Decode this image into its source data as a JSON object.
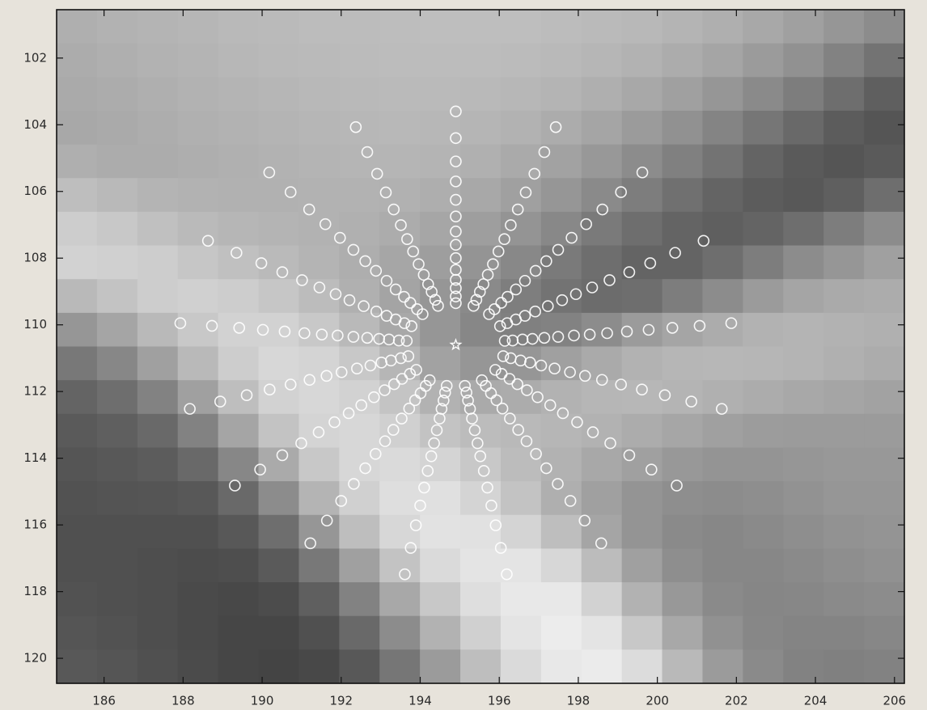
{
  "chart_data": [
    {
      "type": "heatmap",
      "xlim": [
        184.8,
        206.25
      ],
      "ylim": [
        120.75,
        100.55
      ],
      "xticks": [
        186,
        188,
        190,
        192,
        194,
        196,
        198,
        200,
        202,
        204,
        206
      ],
      "yticks": [
        102,
        104,
        106,
        108,
        110,
        112,
        114,
        116,
        118,
        120
      ],
      "z": [
        [
          175,
          178,
          180,
          182,
          185,
          186,
          188,
          188,
          189,
          190,
          190,
          190,
          188,
          186,
          184,
          180,
          175,
          168,
          160,
          150,
          140
        ],
        [
          172,
          175,
          178,
          180,
          183,
          185,
          186,
          187,
          188,
          188,
          188,
          187,
          185,
          182,
          178,
          172,
          165,
          155,
          145,
          130,
          115
        ],
        [
          170,
          172,
          175,
          178,
          180,
          182,
          184,
          185,
          186,
          186,
          185,
          183,
          180,
          175,
          168,
          160,
          150,
          138,
          125,
          110,
          95
        ],
        [
          168,
          170,
          173,
          176,
          178,
          180,
          182,
          183,
          184,
          183,
          181,
          178,
          172,
          165,
          155,
          145,
          132,
          118,
          105,
          92,
          85
        ],
        [
          175,
          172,
          172,
          174,
          176,
          178,
          180,
          181,
          181,
          180,
          176,
          170,
          162,
          152,
          140,
          128,
          115,
          100,
          90,
          85,
          90
        ],
        [
          190,
          185,
          180,
          178,
          177,
          177,
          178,
          178,
          177,
          174,
          168,
          160,
          150,
          138,
          125,
          112,
          100,
          92,
          88,
          95,
          110
        ],
        [
          205,
          200,
          192,
          186,
          182,
          180,
          178,
          176,
          172,
          166,
          158,
          148,
          136,
          122,
          110,
          100,
          95,
          100,
          110,
          125,
          140
        ],
        [
          210,
          208,
          205,
          198,
          192,
          186,
          180,
          174,
          166,
          158,
          148,
          136,
          122,
          110,
          100,
          100,
          110,
          125,
          140,
          150,
          160
        ],
        [
          185,
          195,
          205,
          208,
          205,
          198,
          188,
          176,
          164,
          150,
          138,
          126,
          115,
          108,
          110,
          125,
          140,
          155,
          165,
          170,
          172
        ],
        [
          150,
          165,
          185,
          200,
          210,
          210,
          200,
          185,
          168,
          150,
          135,
          128,
          130,
          140,
          155,
          165,
          172,
          178,
          180,
          178,
          176
        ],
        [
          120,
          135,
          160,
          185,
          205,
          215,
          212,
          200,
          182,
          162,
          150,
          150,
          160,
          170,
          178,
          182,
          183,
          182,
          180,
          176,
          172
        ],
        [
          100,
          110,
          130,
          160,
          190,
          210,
          215,
          210,
          196,
          178,
          170,
          172,
          178,
          182,
          183,
          180,
          176,
          172,
          168,
          165,
          162
        ],
        [
          90,
          95,
          105,
          130,
          165,
          195,
          212,
          215,
          208,
          195,
          188,
          185,
          182,
          178,
          172,
          166,
          160,
          156,
          155,
          155,
          155
        ],
        [
          85,
          88,
          92,
          105,
          135,
          170,
          200,
          215,
          218,
          212,
          200,
          188,
          178,
          168,
          160,
          152,
          148,
          148,
          150,
          152,
          152
        ],
        [
          82,
          84,
          85,
          88,
          105,
          140,
          180,
          208,
          222,
          224,
          212,
          195,
          175,
          160,
          148,
          142,
          140,
          142,
          146,
          150,
          150
        ],
        [
          80,
          80,
          80,
          80,
          88,
          110,
          150,
          190,
          215,
          226,
          225,
          212,
          190,
          165,
          148,
          138,
          135,
          138,
          142,
          146,
          148
        ],
        [
          80,
          80,
          78,
          76,
          78,
          90,
          120,
          160,
          195,
          218,
          228,
          228,
          215,
          188,
          160,
          142,
          135,
          135,
          138,
          142,
          145
        ],
        [
          82,
          80,
          78,
          74,
          72,
          76,
          95,
          130,
          168,
          200,
          222,
          232,
          232,
          210,
          178,
          152,
          138,
          134,
          135,
          138,
          140
        ],
        [
          85,
          82,
          78,
          74,
          70,
          70,
          80,
          105,
          140,
          178,
          208,
          228,
          236,
          228,
          200,
          168,
          145,
          135,
          132,
          132,
          135
        ],
        [
          88,
          85,
          80,
          75,
          70,
          68,
          72,
          88,
          118,
          155,
          190,
          218,
          232,
          235,
          220,
          185,
          155,
          138,
          130,
          128,
          130
        ]
      ]
    },
    {
      "type": "scatter",
      "series": [
        {
          "color": "#ffffff",
          "marker": "circle",
          "x": [
            194.9,
            194.9,
            194.9,
            194.9,
            194.9,
            194.9,
            194.9,
            194.9,
            194.9,
            194.9,
            194.9,
            194.9,
            194.9,
            194.9
          ],
          "y": [
            103.6,
            104.4,
            105.1,
            105.7,
            106.25,
            106.75,
            107.2,
            107.6,
            108.0,
            108.35,
            108.65,
            108.9,
            109.15,
            109.35
          ]
        },
        {
          "color": "#ffffff",
          "marker": "circle",
          "x": [
            197.43,
            197.14,
            196.89,
            196.67,
            196.47,
            196.29,
            196.13,
            195.98,
            195.84,
            195.71,
            195.6,
            195.51,
            195.42,
            195.35
          ],
          "y": [
            104.07,
            104.82,
            105.47,
            106.03,
            106.54,
            107.01,
            107.43,
            107.8,
            108.18,
            108.5,
            108.78,
            109.01,
            109.25,
            109.43
          ]
        },
        {
          "color": "#ffffff",
          "marker": "circle",
          "x": [
            199.62,
            199.08,
            198.61,
            198.2,
            197.83,
            197.49,
            197.19,
            196.92,
            196.65,
            196.42,
            196.21,
            196.05,
            195.88,
            195.74
          ],
          "y": [
            105.43,
            106.02,
            106.54,
            106.98,
            107.39,
            107.75,
            108.09,
            108.38,
            108.68,
            108.94,
            109.16,
            109.34,
            109.53,
            109.68
          ]
        },
        {
          "color": "#ffffff",
          "marker": "circle",
          "x": [
            201.17,
            200.45,
            199.82,
            199.29,
            198.79,
            198.35,
            197.94,
            197.59,
            197.23,
            196.91,
            196.65,
            196.42,
            196.2,
            196.02
          ],
          "y": [
            107.48,
            107.84,
            108.15,
            108.42,
            108.66,
            108.88,
            109.08,
            109.26,
            109.44,
            109.6,
            109.73,
            109.84,
            109.95,
            110.04
          ]
        },
        {
          "color": "#ffffff",
          "marker": "circle",
          "x": [
            201.87,
            201.07,
            200.38,
            199.78,
            199.23,
            198.73,
            198.29,
            197.89,
            197.49,
            197.14,
            196.84,
            196.59,
            196.34,
            196.14
          ],
          "y": [
            109.95,
            110.03,
            110.09,
            110.15,
            110.2,
            110.25,
            110.29,
            110.32,
            110.36,
            110.39,
            110.42,
            110.44,
            110.47,
            110.48
          ]
        },
        {
          "color": "#ffffff",
          "marker": "circle",
          "x": [
            201.63,
            200.86,
            200.19,
            199.61,
            199.08,
            198.6,
            198.17,
            197.79,
            197.4,
            197.06,
            196.78,
            196.54,
            196.29,
            196.1
          ],
          "y": [
            112.52,
            112.3,
            112.11,
            111.94,
            111.79,
            111.65,
            111.53,
            111.42,
            111.31,
            111.22,
            111.13,
            111.07,
            111.0,
            110.94
          ]
        },
        {
          "color": "#ffffff",
          "marker": "circle",
          "x": [
            200.49,
            199.85,
            199.29,
            198.81,
            198.37,
            197.97,
            197.61,
            197.29,
            196.97,
            196.7,
            196.46,
            196.26,
            196.06,
            195.9
          ],
          "y": [
            114.82,
            114.34,
            113.91,
            113.55,
            113.22,
            112.92,
            112.65,
            112.41,
            112.17,
            111.96,
            111.78,
            111.62,
            111.47,
            111.35
          ]
        },
        {
          "color": "#ffffff",
          "marker": "circle",
          "x": [
            198.58,
            198.16,
            197.8,
            197.48,
            197.19,
            196.93,
            196.69,
            196.48,
            196.27,
            196.08,
            195.93,
            195.79,
            195.66,
            195.56
          ],
          "y": [
            116.55,
            115.87,
            115.28,
            114.77,
            114.3,
            113.87,
            113.49,
            113.15,
            112.81,
            112.51,
            112.26,
            112.05,
            111.83,
            111.66
          ]
        },
        {
          "color": "#ffffff",
          "marker": "circle",
          "x": [
            196.19,
            196.04,
            195.91,
            195.8,
            195.7,
            195.61,
            195.52,
            195.45,
            195.38,
            195.31,
            195.26,
            195.21,
            195.17,
            195.13
          ],
          "y": [
            117.48,
            116.69,
            116.01,
            115.42,
            114.88,
            114.38,
            113.94,
            113.55,
            113.16,
            112.81,
            112.52,
            112.27,
            112.03,
            111.83
          ]
        },
        {
          "color": "#ffffff",
          "marker": "circle",
          "x": [
            193.61,
            193.76,
            193.89,
            194.0,
            194.1,
            194.19,
            194.28,
            194.35,
            194.42,
            194.49,
            194.54,
            194.59,
            194.63,
            194.67
          ],
          "y": [
            117.48,
            116.69,
            116.01,
            115.42,
            114.88,
            114.38,
            113.94,
            113.55,
            113.16,
            112.81,
            112.52,
            112.27,
            112.03,
            111.83
          ]
        },
        {
          "color": "#ffffff",
          "marker": "circle",
          "x": [
            191.22,
            191.64,
            192.0,
            192.32,
            192.61,
            192.87,
            193.11,
            193.32,
            193.53,
            193.72,
            193.87,
            194.01,
            194.14,
            194.24
          ],
          "y": [
            116.55,
            115.87,
            115.28,
            114.77,
            114.3,
            113.87,
            113.49,
            113.15,
            112.81,
            112.51,
            112.26,
            112.05,
            111.83,
            111.66
          ]
        },
        {
          "color": "#ffffff",
          "marker": "circle",
          "x": [
            189.31,
            189.95,
            190.51,
            190.99,
            191.43,
            191.83,
            192.19,
            192.51,
            192.83,
            193.1,
            193.34,
            193.54,
            193.74,
            193.9
          ],
          "y": [
            114.82,
            114.34,
            113.91,
            113.55,
            113.22,
            112.92,
            112.65,
            112.41,
            112.17,
            111.96,
            111.78,
            111.62,
            111.47,
            111.35
          ]
        },
        {
          "color": "#ffffff",
          "marker": "circle",
          "x": [
            188.17,
            188.94,
            189.61,
            190.19,
            190.72,
            191.2,
            191.63,
            192.01,
            192.4,
            192.74,
            193.02,
            193.26,
            193.51,
            193.7
          ],
          "y": [
            112.52,
            112.3,
            112.11,
            111.94,
            111.79,
            111.65,
            111.53,
            111.42,
            111.31,
            111.22,
            111.13,
            111.07,
            111.0,
            110.94
          ]
        },
        {
          "color": "#ffffff",
          "marker": "circle",
          "x": [
            187.93,
            188.73,
            189.42,
            190.02,
            190.57,
            191.07,
            191.51,
            191.91,
            192.31,
            192.66,
            192.96,
            193.21,
            193.46,
            193.66
          ],
          "y": [
            109.95,
            110.03,
            110.09,
            110.15,
            110.2,
            110.25,
            110.29,
            110.32,
            110.36,
            110.39,
            110.42,
            110.44,
            110.47,
            110.48
          ]
        },
        {
          "color": "#ffffff",
          "marker": "circle",
          "x": [
            188.63,
            189.35,
            189.98,
            190.51,
            191.01,
            191.45,
            191.86,
            192.21,
            192.57,
            192.89,
            193.15,
            193.38,
            193.6,
            193.78
          ],
          "y": [
            107.48,
            107.84,
            108.15,
            108.42,
            108.66,
            108.88,
            109.08,
            109.26,
            109.44,
            109.6,
            109.73,
            109.84,
            109.95,
            110.04
          ]
        },
        {
          "color": "#ffffff",
          "marker": "circle",
          "x": [
            190.18,
            190.72,
            191.19,
            191.6,
            191.97,
            192.31,
            192.61,
            192.88,
            193.15,
            193.38,
            193.59,
            193.75,
            193.92,
            194.06
          ],
          "y": [
            105.43,
            106.02,
            106.54,
            106.98,
            107.39,
            107.75,
            108.09,
            108.38,
            108.68,
            108.94,
            109.16,
            109.34,
            109.53,
            109.68
          ]
        },
        {
          "color": "#ffffff",
          "marker": "circle",
          "x": [
            192.37,
            192.66,
            192.91,
            193.13,
            193.33,
            193.51,
            193.67,
            193.82,
            193.96,
            194.09,
            194.2,
            194.29,
            194.38,
            194.45
          ],
          "y": [
            104.07,
            104.82,
            105.47,
            106.03,
            106.54,
            107.01,
            107.43,
            107.8,
            108.18,
            108.5,
            108.78,
            109.01,
            109.25,
            109.43
          ]
        },
        {
          "color": "#ffffff",
          "marker": "star",
          "x": [
            194.9
          ],
          "y": [
            110.6
          ]
        }
      ]
    }
  ]
}
